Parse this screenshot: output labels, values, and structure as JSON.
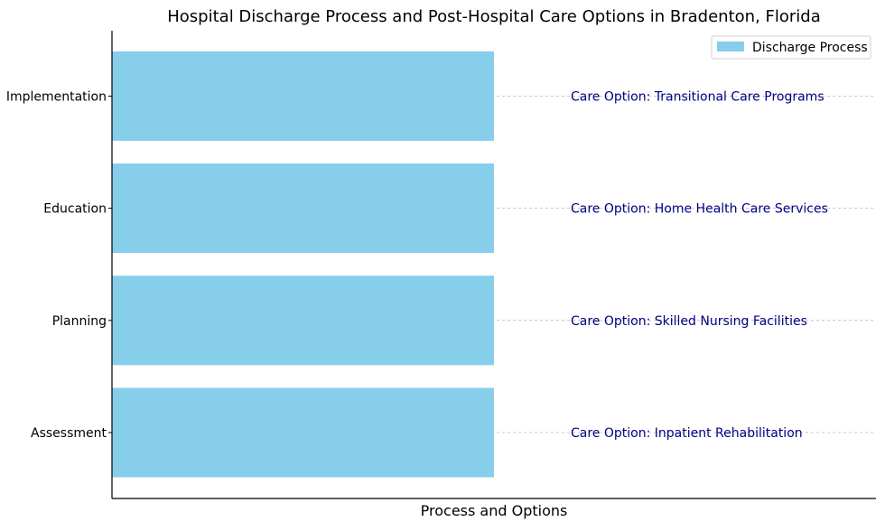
{
  "chart_data": {
    "type": "bar",
    "orientation": "horizontal",
    "title": "Hospital Discharge Process and Post-Hospital Care Options in Bradenton, Florida",
    "xlabel": "Process and Options",
    "ylabel": "",
    "categories": [
      "Assessment",
      "Planning",
      "Education",
      "Implementation"
    ],
    "series": [
      {
        "name": "Discharge Process",
        "values": [
          1,
          1,
          1,
          1
        ],
        "color": "#87CEEB"
      }
    ],
    "annotations": [
      "Care Option: Inpatient Rehabilitation",
      "Care Option: Skilled Nursing Facilities",
      "Care Option: Home Health Care Services",
      "Care Option: Transitional Care Programs"
    ],
    "annotation_color": "#000080",
    "xlim": [
      0,
      2
    ],
    "legend_position": "top-right",
    "grid": "horizontal dashed guides at categories"
  }
}
